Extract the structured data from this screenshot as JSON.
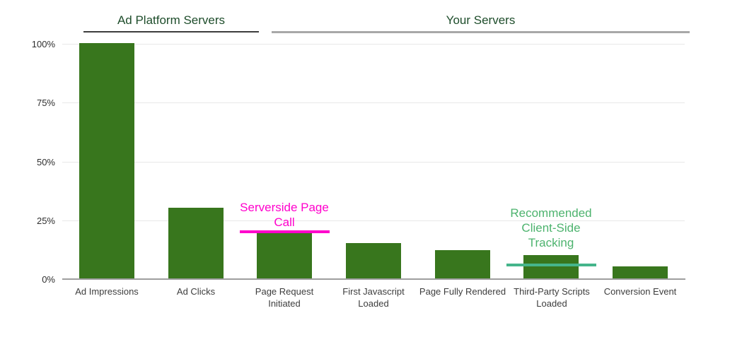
{
  "sections": [
    {
      "label": "Ad Platform Servers",
      "underline_color": "#3d3d3d"
    },
    {
      "label": "Your Servers",
      "underline_color": "#a8a8a8"
    }
  ],
  "chart_data": {
    "type": "bar",
    "categories": [
      "Ad Impressions",
      "Ad Clicks",
      "Page Request Initiated",
      "First Javascript Loaded",
      "Page Fully Rendered",
      "Third-Party Scripts Loaded",
      "Conversion Event"
    ],
    "values": [
      100,
      30,
      20,
      15,
      12,
      10,
      5
    ],
    "unit": "%",
    "bar_color": "#38761d",
    "ylim": [
      0,
      100
    ],
    "grid": true,
    "gridline_color": "#e8e8e8",
    "axis_line_color": "#9e9e9e",
    "y_ticks": [
      {
        "label": "100%",
        "value": 100
      },
      {
        "label": "75%",
        "value": 75
      },
      {
        "label": "50%",
        "value": 50
      },
      {
        "label": "25%",
        "value": 25
      },
      {
        "label": "0%",
        "value": 0
      }
    ],
    "section_groups": [
      {
        "label": "Ad Platform Servers",
        "categories": [
          "Ad Impressions",
          "Ad Clicks"
        ]
      },
      {
        "label": "Your Servers",
        "categories": [
          "Page Request Initiated",
          "First Javascript Loaded",
          "Page Fully Rendered",
          "Third-Party Scripts Loaded",
          "Conversion Event"
        ]
      }
    ]
  },
  "annotations": [
    {
      "text": "Serverside Page Call",
      "color": "#ff00cc",
      "line_color": "#ff00cc",
      "line_value": 20,
      "target_index": 2,
      "target_category": "Page Request Initiated"
    },
    {
      "text": "Recommended Client-Side Tracking",
      "color": "#4db36e",
      "line_color": "#45b58b",
      "line_value": 6,
      "target_index": 5,
      "target_category": "Third-Party Scripts Loaded"
    }
  ]
}
